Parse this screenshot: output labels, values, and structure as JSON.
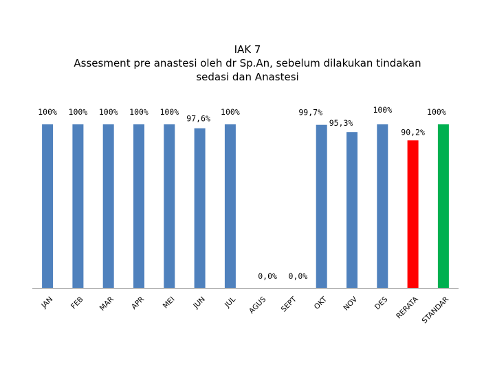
{
  "chart_data": {
    "type": "bar",
    "title_lines": [
      "IAK 7",
      "Assesment pre anastesi oleh dr Sp.An, sebelum dilakukan tindakan",
      "sedasi dan Anastesi"
    ],
    "categories": [
      "JAN",
      "FEB",
      "MAR",
      "APR",
      "MEI",
      "JUN",
      "JUL",
      "AGUS",
      "SEPT",
      "OKT",
      "NOV",
      "DES",
      "RERATA",
      "STANDAR"
    ],
    "values": [
      100,
      100,
      100,
      100,
      100,
      97.6,
      100,
      0,
      0,
      99.7,
      95.3,
      100,
      90.2,
      100
    ],
    "data_labels": [
      "100%",
      "100%",
      "100%",
      "100%",
      "100%",
      "97,6%",
      "100%",
      "0,0%",
      "0,0%",
      "99,7%",
      "95,3%",
      "100%",
      "90,2%",
      "100%"
    ],
    "colors": [
      "#4f81bd",
      "#4f81bd",
      "#4f81bd",
      "#4f81bd",
      "#4f81bd",
      "#4f81bd",
      "#4f81bd",
      "#4f81bd",
      "#4f81bd",
      "#4f81bd",
      "#4f81bd",
      "#4f81bd",
      "#ff0000",
      "#00b050"
    ],
    "ylim": [
      0,
      100
    ],
    "grid": false,
    "legend": "none"
  }
}
